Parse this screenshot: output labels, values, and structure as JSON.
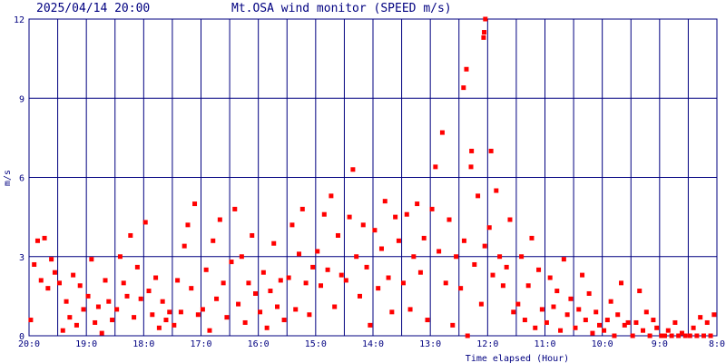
{
  "chart_data": {
    "type": "scatter",
    "title": "Mt.OSA wind monitor (SPEED m/s)",
    "subtitle": "2025/04/14 20:00",
    "y_label": "m/s",
    "x_label": "Time elapsed (Hour)",
    "color": "#ff0000",
    "grid_color": "#000080",
    "xlim": [
      0,
      12
    ],
    "ylim": [
      0,
      12
    ],
    "xticks": [
      {
        "value": 0,
        "label": "20:0"
      },
      {
        "value": 1,
        "label": "19:0"
      },
      {
        "value": 2,
        "label": "18:0"
      },
      {
        "value": 3,
        "label": "17:0"
      },
      {
        "value": 4,
        "label": "16:0"
      },
      {
        "value": 5,
        "label": "15:0"
      },
      {
        "value": 6,
        "label": "14:0"
      },
      {
        "value": 7,
        "label": "13:0"
      },
      {
        "value": 8,
        "label": "12:0"
      },
      {
        "value": 9,
        "label": "11:0"
      },
      {
        "value": 10,
        "label": "10:0"
      },
      {
        "value": 11,
        "label": "9:0"
      },
      {
        "value": 12,
        "label": "8:0"
      }
    ],
    "xgrid": [
      0.5,
      1.5,
      2.5,
      3.5,
      4.5,
      5.5,
      6.5,
      7.5,
      8.5,
      9.5,
      10.5,
      11.5
    ],
    "yticks": [
      0,
      3,
      6,
      9,
      12
    ],
    "grid": true,
    "x": [
      0.03,
      0.09,
      0.15,
      0.21,
      0.27,
      0.33,
      0.39,
      0.45,
      0.53,
      0.59,
      0.65,
      0.71,
      0.77,
      0.83,
      0.89,
      0.95,
      1.03,
      1.09,
      1.15,
      1.21,
      1.27,
      1.33,
      1.39,
      1.45,
      1.53,
      1.59,
      1.65,
      1.71,
      1.77,
      1.83,
      1.89,
      1.95,
      2.03,
      2.09,
      2.15,
      2.21,
      2.27,
      2.33,
      2.39,
      2.45,
      2.53,
      2.59,
      2.65,
      2.71,
      2.77,
      2.83,
      2.89,
      2.95,
      3.03,
      3.09,
      3.15,
      3.21,
      3.27,
      3.33,
      3.39,
      3.45,
      3.53,
      3.59,
      3.65,
      3.71,
      3.77,
      3.83,
      3.89,
      3.95,
      4.03,
      4.09,
      4.15,
      4.21,
      4.27,
      4.33,
      4.39,
      4.45,
      4.53,
      4.59,
      4.65,
      4.71,
      4.77,
      4.83,
      4.89,
      4.95,
      5.03,
      5.09,
      5.15,
      5.21,
      5.27,
      5.33,
      5.39,
      5.45,
      5.53,
      5.59,
      5.65,
      5.71,
      5.77,
      5.83,
      5.89,
      5.95,
      6.03,
      6.09,
      6.15,
      6.21,
      6.27,
      6.33,
      6.39,
      6.45,
      6.53,
      6.59,
      6.65,
      6.71,
      6.77,
      6.83,
      6.89,
      6.95,
      7.03,
      7.09,
      7.15,
      7.21,
      7.27,
      7.33,
      7.39,
      7.45,
      7.53,
      7.59,
      7.65,
      7.71,
      7.77,
      7.83,
      7.89,
      7.95,
      8.03,
      8.09,
      8.15,
      8.21,
      8.27,
      8.33,
      8.39,
      8.45,
      8.53,
      8.59,
      8.65,
      8.71,
      8.77,
      8.83,
      8.89,
      8.95,
      9.03,
      9.09,
      9.15,
      9.21,
      9.27,
      9.33,
      9.39,
      9.45,
      9.53,
      9.59,
      9.65,
      9.71,
      9.77,
      9.83,
      9.89,
      9.95,
      10.03,
      10.09,
      10.15,
      10.21,
      10.27,
      10.33,
      10.39,
      10.45,
      10.53,
      10.59,
      10.65,
      10.71,
      10.77,
      10.83,
      10.89,
      10.95,
      11.03,
      11.09,
      11.15,
      11.21,
      11.27,
      11.33,
      11.39,
      11.45,
      11.53,
      11.59,
      11.65,
      11.71,
      11.77,
      11.83,
      11.89,
      11.95,
      7.58,
      7.63,
      7.72,
      7.93,
      7.94,
      7.96,
      8.06
    ],
    "values": [
      0.6,
      2.7,
      3.6,
      2.1,
      3.7,
      1.8,
      2.9,
      2.4,
      2.0,
      0.2,
      1.3,
      0.7,
      2.3,
      0.4,
      1.9,
      1.0,
      1.5,
      2.9,
      0.5,
      1.1,
      0.1,
      2.1,
      1.3,
      0.6,
      1.0,
      3.0,
      2.0,
      1.5,
      3.8,
      0.7,
      2.6,
      1.4,
      4.3,
      1.7,
      0.8,
      2.2,
      0.3,
      1.3,
      0.6,
      0.9,
      0.4,
      2.1,
      0.9,
      3.4,
      4.2,
      1.8,
      5.0,
      0.8,
      1.0,
      2.5,
      0.2,
      3.6,
      1.4,
      4.4,
      2.0,
      0.7,
      2.8,
      4.8,
      1.2,
      3.0,
      0.5,
      2.0,
      3.8,
      1.6,
      0.9,
      2.4,
      0.3,
      1.7,
      3.5,
      1.1,
      2.1,
      0.6,
      2.2,
      4.2,
      1.0,
      3.1,
      4.8,
      2.0,
      0.8,
      2.6,
      3.2,
      1.9,
      4.6,
      2.5,
      5.3,
      1.1,
      3.8,
      2.3,
      2.1,
      4.5,
      6.3,
      3.0,
      1.5,
      4.2,
      2.6,
      0.4,
      4.0,
      1.8,
      3.3,
      5.1,
      2.2,
      0.9,
      4.5,
      3.6,
      2.0,
      4.6,
      1.0,
      3.0,
      5.0,
      2.4,
      3.7,
      0.6,
      4.8,
      6.4,
      3.2,
      7.7,
      2.0,
      4.4,
      0.4,
      3.0,
      1.8,
      3.6,
      0.0,
      6.4,
      2.7,
      5.3,
      1.2,
      3.4,
      4.1,
      2.3,
      5.5,
      3.0,
      1.9,
      2.6,
      4.4,
      0.9,
      1.2,
      3.0,
      0.6,
      1.9,
      3.7,
      0.3,
      2.5,
      1.0,
      0.5,
      2.2,
      1.1,
      1.7,
      0.2,
      2.9,
      0.8,
      1.4,
      0.3,
      1.0,
      2.3,
      0.6,
      1.6,
      0.1,
      0.9,
      0.4,
      0.2,
      0.6,
      1.3,
      0.0,
      0.8,
      2.0,
      0.4,
      0.5,
      0.0,
      0.5,
      1.7,
      0.2,
      0.9,
      0.0,
      0.6,
      0.3,
      0.0,
      0.0,
      0.2,
      0.0,
      0.5,
      0.0,
      0.1,
      0.0,
      0.0,
      0.3,
      0.0,
      0.7,
      0.0,
      0.5,
      0.0,
      0.8,
      9.4,
      10.1,
      7.0,
      11.3,
      11.5,
      12.0,
      7.0
    ]
  }
}
